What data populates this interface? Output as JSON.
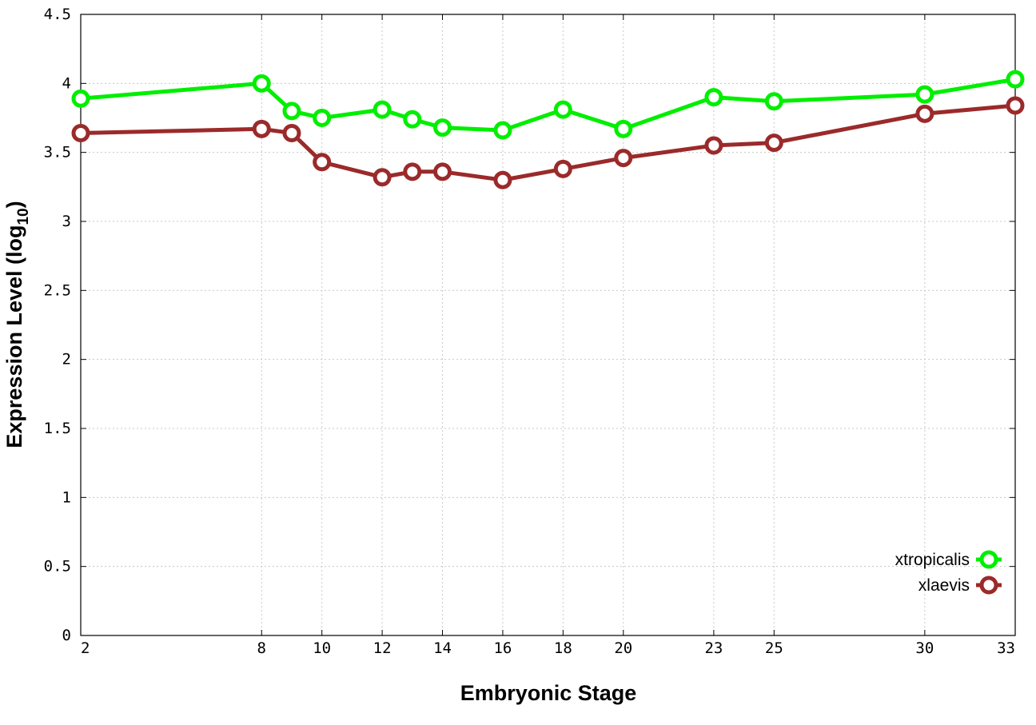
{
  "chart_data": {
    "type": "line",
    "xlabel": "Embryonic Stage",
    "ylabel": "Expression Level (log",
    "ylabel_subscript": "10",
    "ylabel_close": ")",
    "x_ticks": [
      2,
      8,
      10,
      12,
      14,
      16,
      18,
      20,
      23,
      25,
      30,
      33
    ],
    "y_ticks": [
      "0",
      "0.5",
      "1",
      "1.5",
      "2",
      "2.5",
      "3",
      "3.5",
      "4",
      "4.5"
    ],
    "xlim": [
      2,
      33
    ],
    "ylim": [
      0,
      4.5
    ],
    "grid": true,
    "legend_position": "bottom-right",
    "x": [
      2,
      8,
      9,
      10,
      12,
      13,
      14,
      16,
      18,
      20,
      23,
      25,
      30,
      33
    ],
    "series": [
      {
        "name": "xtropicalis",
        "color": "#00ee00",
        "values": [
          3.89,
          4.0,
          3.8,
          3.75,
          3.81,
          3.74,
          3.68,
          3.66,
          3.81,
          3.67,
          3.9,
          3.87,
          3.92,
          4.03
        ]
      },
      {
        "name": "xlaevis",
        "color": "#9b2a2a",
        "values": [
          3.64,
          3.67,
          3.64,
          3.43,
          3.32,
          3.36,
          3.36,
          3.3,
          3.38,
          3.46,
          3.55,
          3.57,
          3.78,
          3.84
        ]
      }
    ]
  }
}
